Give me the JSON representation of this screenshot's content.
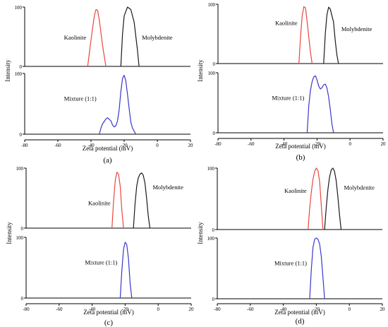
{
  "chart_data": [
    {
      "type": "line",
      "panel_label": "(a)",
      "xlabel": "Zeta potential (mV)",
      "ylabel": "Intensity",
      "xlim": [
        -80,
        20
      ],
      "ylim": [
        0,
        100
      ],
      "x_ticks": [
        "-80",
        "-60",
        "-40",
        "-20",
        "0",
        "20"
      ],
      "y_ticks": [
        "0",
        "100"
      ],
      "top": {
        "series": [
          {
            "name": "Kaolinite",
            "color": "#e8473f",
            "x": [
              -42,
              -40,
              -38,
              -37,
              -36,
              -35,
              -33,
              -31
            ],
            "y": [
              0,
              45,
              85,
              96,
              94,
              78,
              35,
              0
            ]
          },
          {
            "name": "Molybdenite",
            "color": "#1a1a1a",
            "x": [
              -22,
              -21,
              -20,
              -18,
              -16,
              -14,
              -12,
              -11
            ],
            "y": [
              0,
              55,
              85,
              100,
              96,
              75,
              28,
              0
            ]
          }
        ]
      },
      "bottom": {
        "series": [
          {
            "name": "Mixture (1:1)",
            "color": "#3a37c8",
            "x": [
              -35,
              -34,
              -33,
              -31,
              -30,
              -28,
              -27,
              -26,
              -25,
              -24,
              -23,
              -22,
              -21,
              -20,
              -19,
              -18,
              -17,
              -16,
              -15,
              -14,
              -13
            ],
            "y": [
              0,
              10,
              17,
              25,
              27,
              22,
              15,
              12,
              14,
              22,
              40,
              70,
              92,
              97,
              88,
              66,
              42,
              20,
              10,
              5,
              0
            ]
          }
        ]
      }
    },
    {
      "type": "line",
      "panel_label": "(b)",
      "xlabel": "Zeta potential (mV)",
      "ylabel": "Intensity",
      "xlim": [
        -80,
        20
      ],
      "ylim": [
        0,
        100
      ],
      "x_ticks": [
        "-80",
        "-60",
        "-40",
        "-20",
        "0",
        "20"
      ],
      "y_ticks": [
        "0",
        "100"
      ],
      "top": {
        "series": [
          {
            "name": "Kaolinite",
            "color": "#e8473f",
            "x": [
              -31,
              -30,
              -29,
              -28,
              -27,
              -26,
              -24,
              -23
            ],
            "y": [
              0,
              45,
              80,
              96,
              94,
              70,
              20,
              0
            ]
          },
          {
            "name": "Molybdenite",
            "color": "#1a1a1a",
            "x": [
              -16,
              -15,
              -14,
              -13,
              -12,
              -10,
              -9,
              -8,
              -7
            ],
            "y": [
              0,
              50,
              82,
              95,
              92,
              70,
              40,
              15,
              0
            ]
          }
        ]
      },
      "bottom": {
        "series": [
          {
            "name": "Mixture (1:1)",
            "color": "#3a37c8",
            "x": [
              -26,
              -25,
              -24,
              -23,
              -22,
              -21,
              -20,
              -19,
              -18,
              -17,
              -16,
              -15,
              -14,
              -13,
              -12,
              -11,
              -10
            ],
            "y": [
              0,
              45,
              70,
              85,
              93,
              95,
              88,
              78,
              73,
              75,
              80,
              81,
              75,
              60,
              40,
              15,
              0
            ]
          }
        ]
      }
    },
    {
      "type": "line",
      "panel_label": "(c)",
      "xlabel": "Zeta potential (mV)",
      "ylabel": "Intensity",
      "xlim": [
        -80,
        20
      ],
      "ylim": [
        0,
        100
      ],
      "x_ticks": [
        "-80",
        "-60",
        "-40",
        "-20",
        "0",
        "20"
      ],
      "y_ticks": [
        "0",
        "100"
      ],
      "top": {
        "series": [
          {
            "name": "Kaolinite",
            "color": "#e8473f",
            "x": [
              -28,
              -27,
              -26,
              -25,
              -24,
              -23,
              -22,
              -21
            ],
            "y": [
              0,
              45,
              80,
              93,
              90,
              70,
              30,
              0
            ]
          },
          {
            "name": "Molybdenite",
            "color": "#1a1a1a",
            "x": [
              -15,
              -14,
              -13,
              -12,
              -11,
              -10,
              -9,
              -8,
              -7,
              -6,
              -5
            ],
            "y": [
              0,
              40,
              70,
              84,
              90,
              92,
              88,
              75,
              50,
              20,
              0
            ]
          }
        ]
      },
      "bottom": {
        "series": [
          {
            "name": "Mixture (1:1)",
            "color": "#3a37c8",
            "x": [
              -23,
              -22,
              -21,
              -20,
              -19,
              -18,
              -17,
              -16
            ],
            "y": [
              0,
              45,
              80,
              92,
              88,
              65,
              25,
              0
            ]
          }
        ]
      }
    },
    {
      "type": "line",
      "panel_label": "(d)",
      "xlabel": "Zeta potential (mV)",
      "ylabel": "Intensity",
      "xlim": [
        -80,
        20
      ],
      "ylim": [
        0,
        100
      ],
      "x_ticks": [
        "-80",
        "-60",
        "-40",
        "-20",
        "0",
        "20"
      ],
      "y_ticks": [
        "0",
        "100"
      ],
      "top": {
        "series": [
          {
            "name": "Kaolinite",
            "color": "#e8473f",
            "x": [
              -25,
              -24,
              -23,
              -22,
              -21,
              -20,
              -19,
              -18,
              -17,
              -16
            ],
            "y": [
              0,
              35,
              62,
              82,
              95,
              100,
              96,
              78,
              40,
              0
            ]
          },
          {
            "name": "Molybdenite",
            "color": "#1a1a1a",
            "x": [
              -15,
              -14,
              -13,
              -12,
              -11,
              -10,
              -9,
              -8,
              -7,
              -6,
              -5
            ],
            "y": [
              0,
              35,
              65,
              85,
              97,
              100,
              95,
              80,
              55,
              25,
              0
            ]
          }
        ]
      },
      "bottom": {
        "series": [
          {
            "name": "Mixture (1:1)",
            "color": "#3a37c8",
            "x": [
              -24,
              -23,
              -22,
              -21,
              -20,
              -19,
              -18,
              -17,
              -16,
              -15
            ],
            "y": [
              0,
              50,
              85,
              98,
              100,
              98,
              90,
              70,
              35,
              0
            ]
          }
        ]
      }
    }
  ]
}
